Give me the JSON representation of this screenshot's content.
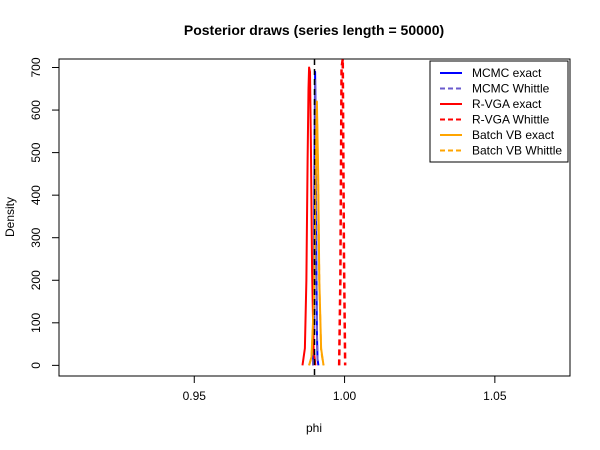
{
  "chart_data": {
    "type": "line",
    "title": "Posterior draws (series length = 50000)",
    "xlabel": "phi",
    "ylabel": "Density",
    "xlim": [
      0.905,
      1.075
    ],
    "ylim": [
      -25,
      720
    ],
    "x_ticks": [
      0.95,
      1.0,
      1.05
    ],
    "x_tick_labels": [
      "0.95",
      "1.00",
      "1.05"
    ],
    "y_ticks": [
      0,
      100,
      200,
      300,
      400,
      500,
      600,
      700
    ],
    "y_tick_labels": [
      "0",
      "100",
      "200",
      "300",
      "400",
      "500",
      "600",
      "700"
    ],
    "true_value": 0.99,
    "grid": false,
    "legend_position": "top-right",
    "series": [
      {
        "name": "MCMC exact",
        "color": "#0000ff",
        "dash": "solid",
        "x": [
          0.9895,
          0.9898,
          0.99,
          0.9902,
          0.9904,
          0.9906,
          0.9908,
          0.991,
          0.9913
        ],
        "y": [
          0,
          120,
          480,
          690,
          560,
          260,
          80,
          15,
          0
        ]
      },
      {
        "name": "MCMC Whittle",
        "color": "#6a5acd",
        "dash": "dashed",
        "x": [
          0.9895,
          0.9898,
          0.99,
          0.9902,
          0.9904,
          0.9906,
          0.9908,
          0.991,
          0.9913
        ],
        "y": [
          0,
          110,
          460,
          670,
          540,
          250,
          75,
          12,
          0
        ]
      },
      {
        "name": "R-VGA exact",
        "color": "#ff0000",
        "dash": "solid",
        "x": [
          0.986,
          0.9868,
          0.9873,
          0.9877,
          0.988,
          0.9882,
          0.9885,
          0.9888,
          0.9892,
          0.9897,
          0.9903
        ],
        "y": [
          0,
          40,
          200,
          480,
          650,
          700,
          690,
          520,
          220,
          40,
          0
        ]
      },
      {
        "name": "R-VGA Whittle",
        "color": "#ff0000",
        "dash": "dashed",
        "x": [
          0.9982,
          0.9986,
          0.999,
          0.9994,
          0.9998,
          1.0002
        ],
        "y": [
          0,
          200,
          700,
          720,
          260,
          0
        ]
      },
      {
        "name": "Batch VB exact",
        "color": "#ffa500",
        "dash": "solid",
        "x": [
          0.9882,
          0.989,
          0.9898,
          0.9903,
          0.9908,
          0.9912,
          0.9916,
          0.9922,
          0.993
        ],
        "y": [
          0,
          20,
          150,
          420,
          620,
          460,
          200,
          40,
          0
        ]
      },
      {
        "name": "Batch VB Whittle",
        "color": "#ffa500",
        "dash": "dashed",
        "x": [
          0.9882,
          0.989,
          0.9898,
          0.9903,
          0.9908,
          0.9912,
          0.9916,
          0.9922,
          0.993
        ],
        "y": [
          0,
          18,
          140,
          400,
          600,
          440,
          190,
          35,
          0
        ]
      }
    ]
  }
}
